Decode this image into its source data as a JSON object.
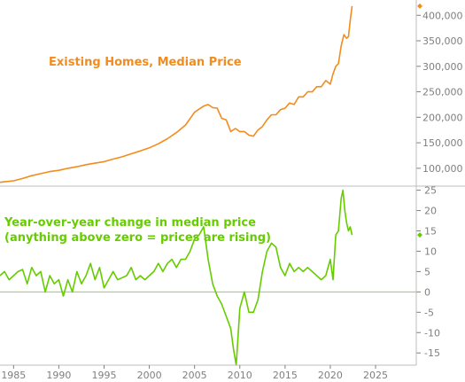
{
  "colors": {
    "top_series": "#f28c1e",
    "bottom_series": "#66cc00",
    "axis_text": "#7f7f7f",
    "grid": "#dcdcdc",
    "zero_line": "#8fd14f",
    "background": "#ffffff"
  },
  "chart_data": [
    {
      "type": "line",
      "title": "Existing Homes, Median Price",
      "x_range": [
        1983.5,
        2029.5
      ],
      "y_range": [
        65000,
        430000
      ],
      "y_ticks": [
        100000,
        150000,
        200000,
        250000,
        300000,
        350000,
        400000
      ],
      "y_tick_labels": [
        "100,000",
        "150,000",
        "200,000",
        "250,000",
        "300,000",
        "350,000",
        "400,000"
      ],
      "grid": true,
      "end_marker": "diamond",
      "series": [
        {
          "points": [
            [
              1983.5,
              72500
            ],
            [
              1984.0,
              73500
            ],
            [
              1985.0,
              75500
            ],
            [
              1986.0,
              80000
            ],
            [
              1987.0,
              85500
            ],
            [
              1988.0,
              89500
            ],
            [
              1989.0,
              93500
            ],
            [
              1990.0,
              96000
            ],
            [
              1991.0,
              100000
            ],
            [
              1992.0,
              103000
            ],
            [
              1993.0,
              107000
            ],
            [
              1994.0,
              110000
            ],
            [
              1995.0,
              113000
            ],
            [
              1996.0,
              118000
            ],
            [
              1997.0,
              122500
            ],
            [
              1998.0,
              128500
            ],
            [
              1999.0,
              134000
            ],
            [
              2000.0,
              140000
            ],
            [
              2001.0,
              148000
            ],
            [
              2002.0,
              158000
            ],
            [
              2003.0,
              170000
            ],
            [
              2004.0,
              185000
            ],
            [
              2005.0,
              210000
            ],
            [
              2006.0,
              222000
            ],
            [
              2006.5,
              225000
            ],
            [
              2007.0,
              219000
            ],
            [
              2007.5,
              218000
            ],
            [
              2008.0,
              198000
            ],
            [
              2008.5,
              195000
            ],
            [
              2009.0,
              172000
            ],
            [
              2009.5,
              178000
            ],
            [
              2010.0,
              172000
            ],
            [
              2010.5,
              172000
            ],
            [
              2011.0,
              165000
            ],
            [
              2011.5,
              163000
            ],
            [
              2012.0,
              175000
            ],
            [
              2012.5,
              182000
            ],
            [
              2013.0,
              195000
            ],
            [
              2013.5,
              205000
            ],
            [
              2014.0,
              205000
            ],
            [
              2014.5,
              215000
            ],
            [
              2015.0,
              218000
            ],
            [
              2015.5,
              228000
            ],
            [
              2016.0,
              225000
            ],
            [
              2016.5,
              240000
            ],
            [
              2017.0,
              240000
            ],
            [
              2017.5,
              250000
            ],
            [
              2018.0,
              250000
            ],
            [
              2018.5,
              260000
            ],
            [
              2019.0,
              260000
            ],
            [
              2019.5,
              272000
            ],
            [
              2020.0,
              265000
            ],
            [
              2020.3,
              285000
            ],
            [
              2020.6,
              300000
            ],
            [
              2020.9,
              305000
            ],
            [
              2021.2,
              340000
            ],
            [
              2021.5,
              362000
            ],
            [
              2021.8,
              355000
            ],
            [
              2022.0,
              358000
            ],
            [
              2022.2,
              390000
            ],
            [
              2022.4,
              418000
            ]
          ]
        }
      ]
    },
    {
      "type": "line",
      "title": "Year-over-year change in median price",
      "subtitle": "(anything above zero = prices are rising)",
      "x_range": [
        1983.5,
        2029.5
      ],
      "y_range": [
        -18,
        26
      ],
      "y_ticks": [
        -15,
        -10,
        -5,
        0,
        5,
        10,
        15,
        20,
        25
      ],
      "x_ticks": [
        1985,
        1990,
        1995,
        2000,
        2005,
        2010,
        2015,
        2020,
        2025
      ],
      "zero_line": true,
      "grid": true,
      "end_marker": "diamond",
      "series": [
        {
          "points": [
            [
              1983.5,
              4
            ],
            [
              1984.0,
              5
            ],
            [
              1984.5,
              3
            ],
            [
              1985.0,
              4
            ],
            [
              1985.5,
              5
            ],
            [
              1986.0,
              5.5
            ],
            [
              1986.5,
              2
            ],
            [
              1987.0,
              6
            ],
            [
              1987.5,
              4
            ],
            [
              1988.0,
              5
            ],
            [
              1988.5,
              0
            ],
            [
              1989.0,
              4
            ],
            [
              1989.5,
              2
            ],
            [
              1990.0,
              3
            ],
            [
              1990.5,
              -1
            ],
            [
              1991.0,
              3
            ],
            [
              1991.5,
              0
            ],
            [
              1992.0,
              5
            ],
            [
              1992.5,
              2
            ],
            [
              1993.0,
              4
            ],
            [
              1993.5,
              7
            ],
            [
              1994.0,
              3
            ],
            [
              1994.5,
              6
            ],
            [
              1995.0,
              1
            ],
            [
              1995.5,
              3
            ],
            [
              1996.0,
              5
            ],
            [
              1996.5,
              3
            ],
            [
              1997.0,
              3.5
            ],
            [
              1997.5,
              4
            ],
            [
              1998.0,
              6
            ],
            [
              1998.5,
              3
            ],
            [
              1999.0,
              4
            ],
            [
              1999.5,
              3
            ],
            [
              2000.0,
              4
            ],
            [
              2000.5,
              5
            ],
            [
              2001.0,
              7
            ],
            [
              2001.5,
              5
            ],
            [
              2002.0,
              7
            ],
            [
              2002.5,
              8
            ],
            [
              2003.0,
              6
            ],
            [
              2003.5,
              8
            ],
            [
              2004.0,
              8
            ],
            [
              2004.5,
              10
            ],
            [
              2005.0,
              13
            ],
            [
              2005.5,
              14
            ],
            [
              2006.0,
              16
            ],
            [
              2006.5,
              8
            ],
            [
              2007.0,
              2
            ],
            [
              2007.5,
              -1
            ],
            [
              2008.0,
              -3
            ],
            [
              2008.5,
              -6
            ],
            [
              2009.0,
              -9
            ],
            [
              2009.3,
              -14
            ],
            [
              2009.6,
              -18
            ],
            [
              2010.0,
              -4
            ],
            [
              2010.5,
              0
            ],
            [
              2011.0,
              -5
            ],
            [
              2011.5,
              -5
            ],
            [
              2012.0,
              -2
            ],
            [
              2012.5,
              5
            ],
            [
              2013.0,
              10
            ],
            [
              2013.5,
              12
            ],
            [
              2014.0,
              11
            ],
            [
              2014.5,
              6
            ],
            [
              2015.0,
              4
            ],
            [
              2015.5,
              7
            ],
            [
              2016.0,
              5
            ],
            [
              2016.5,
              6
            ],
            [
              2017.0,
              5
            ],
            [
              2017.5,
              6
            ],
            [
              2018.0,
              5
            ],
            [
              2018.5,
              4
            ],
            [
              2019.0,
              3
            ],
            [
              2019.5,
              4
            ],
            [
              2020.0,
              8
            ],
            [
              2020.3,
              3
            ],
            [
              2020.6,
              14
            ],
            [
              2020.9,
              15
            ],
            [
              2021.2,
              23
            ],
            [
              2021.4,
              25
            ],
            [
              2021.6,
              20
            ],
            [
              2021.8,
              17
            ],
            [
              2022.0,
              15
            ],
            [
              2022.2,
              16
            ],
            [
              2022.4,
              14
            ]
          ]
        }
      ]
    }
  ]
}
